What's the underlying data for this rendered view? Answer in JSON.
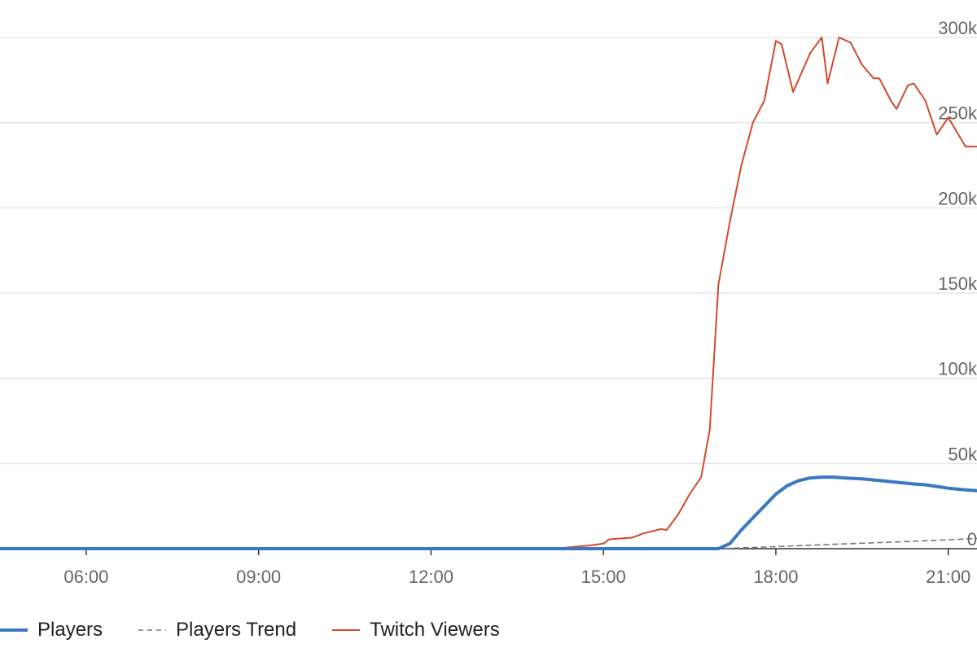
{
  "chart_data": {
    "type": "line",
    "x_unit": "hour of day",
    "xlim": [
      4.5,
      21.5
    ],
    "ylim": [
      0,
      300000
    ],
    "x_ticks": [
      6,
      9,
      12,
      15,
      18,
      21
    ],
    "x_tick_labels": [
      "06:00",
      "09:00",
      "12:00",
      "15:00",
      "18:00",
      "21:00"
    ],
    "y_ticks": [
      0,
      50000,
      100000,
      150000,
      200000,
      250000,
      300000
    ],
    "y_tick_labels": [
      "0",
      "50k",
      "100k",
      "150k",
      "200k",
      "250k",
      "300k"
    ],
    "grid": true,
    "legend_position": "bottom-left",
    "series": [
      {
        "name": "Players",
        "color": "#3a78c3",
        "style": "solid-thick",
        "points": [
          [
            4.5,
            0
          ],
          [
            17.0,
            0
          ],
          [
            17.2,
            3000
          ],
          [
            17.4,
            11000
          ],
          [
            17.6,
            18000
          ],
          [
            17.8,
            25000
          ],
          [
            18.0,
            32000
          ],
          [
            18.2,
            37000
          ],
          [
            18.4,
            40000
          ],
          [
            18.6,
            41500
          ],
          [
            18.8,
            42000
          ],
          [
            19.0,
            42000
          ],
          [
            19.2,
            41500
          ],
          [
            19.5,
            41000
          ],
          [
            19.8,
            40000
          ],
          [
            20.1,
            39000
          ],
          [
            20.4,
            38000
          ],
          [
            20.6,
            37500
          ],
          [
            20.8,
            36500
          ],
          [
            21.0,
            35500
          ],
          [
            21.3,
            34500
          ],
          [
            21.5,
            34000
          ]
        ]
      },
      {
        "name": "Players Trend",
        "color": "#777777",
        "style": "dashed",
        "points": [
          [
            4.5,
            0
          ],
          [
            17.0,
            0
          ],
          [
            18.0,
            1200
          ],
          [
            19.0,
            2600
          ],
          [
            20.0,
            3800
          ],
          [
            21.0,
            5200
          ],
          [
            21.5,
            6000
          ]
        ]
      },
      {
        "name": "Twitch Viewers",
        "color": "#d14a2b",
        "style": "solid-thin",
        "points": [
          [
            4.5,
            0
          ],
          [
            13.5,
            0
          ],
          [
            14.3,
            500
          ],
          [
            14.8,
            2000
          ],
          [
            15.0,
            3000
          ],
          [
            15.1,
            5500
          ],
          [
            15.5,
            6500
          ],
          [
            15.7,
            9000
          ],
          [
            16.0,
            11500
          ],
          [
            16.1,
            11000
          ],
          [
            16.3,
            20000
          ],
          [
            16.5,
            32000
          ],
          [
            16.7,
            42000
          ],
          [
            16.85,
            70000
          ],
          [
            17.0,
            155000
          ],
          [
            17.2,
            192000
          ],
          [
            17.4,
            225000
          ],
          [
            17.6,
            250000
          ],
          [
            17.8,
            263000
          ],
          [
            18.0,
            298000
          ],
          [
            18.1,
            296000
          ],
          [
            18.3,
            268000
          ],
          [
            18.6,
            291000
          ],
          [
            18.8,
            300000
          ],
          [
            18.9,
            273000
          ],
          [
            19.1,
            300000
          ],
          [
            19.3,
            297000
          ],
          [
            19.5,
            284000
          ],
          [
            19.7,
            276000
          ],
          [
            19.8,
            276000
          ],
          [
            20.0,
            263000
          ],
          [
            20.1,
            258000
          ],
          [
            20.3,
            272000
          ],
          [
            20.4,
            273000
          ],
          [
            20.6,
            263000
          ],
          [
            20.8,
            243000
          ],
          [
            21.0,
            253000
          ],
          [
            21.3,
            236000
          ],
          [
            21.5,
            236000
          ]
        ]
      }
    ]
  }
}
